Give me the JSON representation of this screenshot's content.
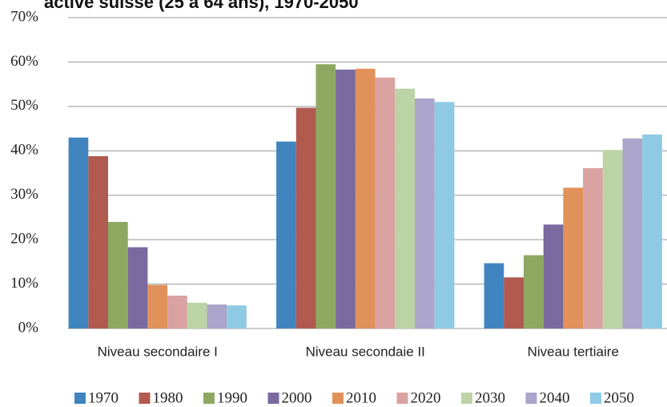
{
  "chart_data": {
    "type": "bar",
    "title": "active suisse (25 à 64 ans), 1970-2050",
    "categories": [
      "Niveau secondaire I",
      "Niveau secondaie II",
      "Niveau tertiaire"
    ],
    "series": [
      {
        "name": "1970",
        "color": "#4185c0",
        "values": [
          43,
          42.1,
          14.7
        ]
      },
      {
        "name": "1980",
        "color": "#b05a50",
        "values": [
          38.8,
          49.7,
          11.5
        ]
      },
      {
        "name": "1990",
        "color": "#8ea862",
        "values": [
          24,
          59.5,
          16.5
        ]
      },
      {
        "name": "2000",
        "color": "#7a6aa0",
        "values": [
          18.3,
          58.3,
          23.4
        ]
      },
      {
        "name": "2010",
        "color": "#e0925a",
        "values": [
          9.8,
          58.5,
          31.7
        ]
      },
      {
        "name": "2020",
        "color": "#d9a2a0",
        "values": [
          7.4,
          56.5,
          36.1
        ]
      },
      {
        "name": "2030",
        "color": "#bcd3a6",
        "values": [
          5.8,
          54,
          40.2
        ]
      },
      {
        "name": "2040",
        "color": "#aba5cb",
        "values": [
          5.4,
          51.8,
          42.8
        ]
      },
      {
        "name": "2050",
        "color": "#8ecae4",
        "values": [
          5.2,
          51,
          43.7
        ]
      }
    ],
    "ylim": [
      0,
      70
    ],
    "yticks": [
      {
        "value": 0,
        "label": "0%"
      },
      {
        "value": 10,
        "label": "10%"
      },
      {
        "value": 20,
        "label": "20%"
      },
      {
        "value": 30,
        "label": "30%"
      },
      {
        "value": 40,
        "label": "40%"
      },
      {
        "value": 50,
        "label": "50%"
      },
      {
        "value": 60,
        "label": "60%"
      },
      {
        "value": 70,
        "label": "70%"
      }
    ],
    "grid": true,
    "legend": "bottom"
  }
}
